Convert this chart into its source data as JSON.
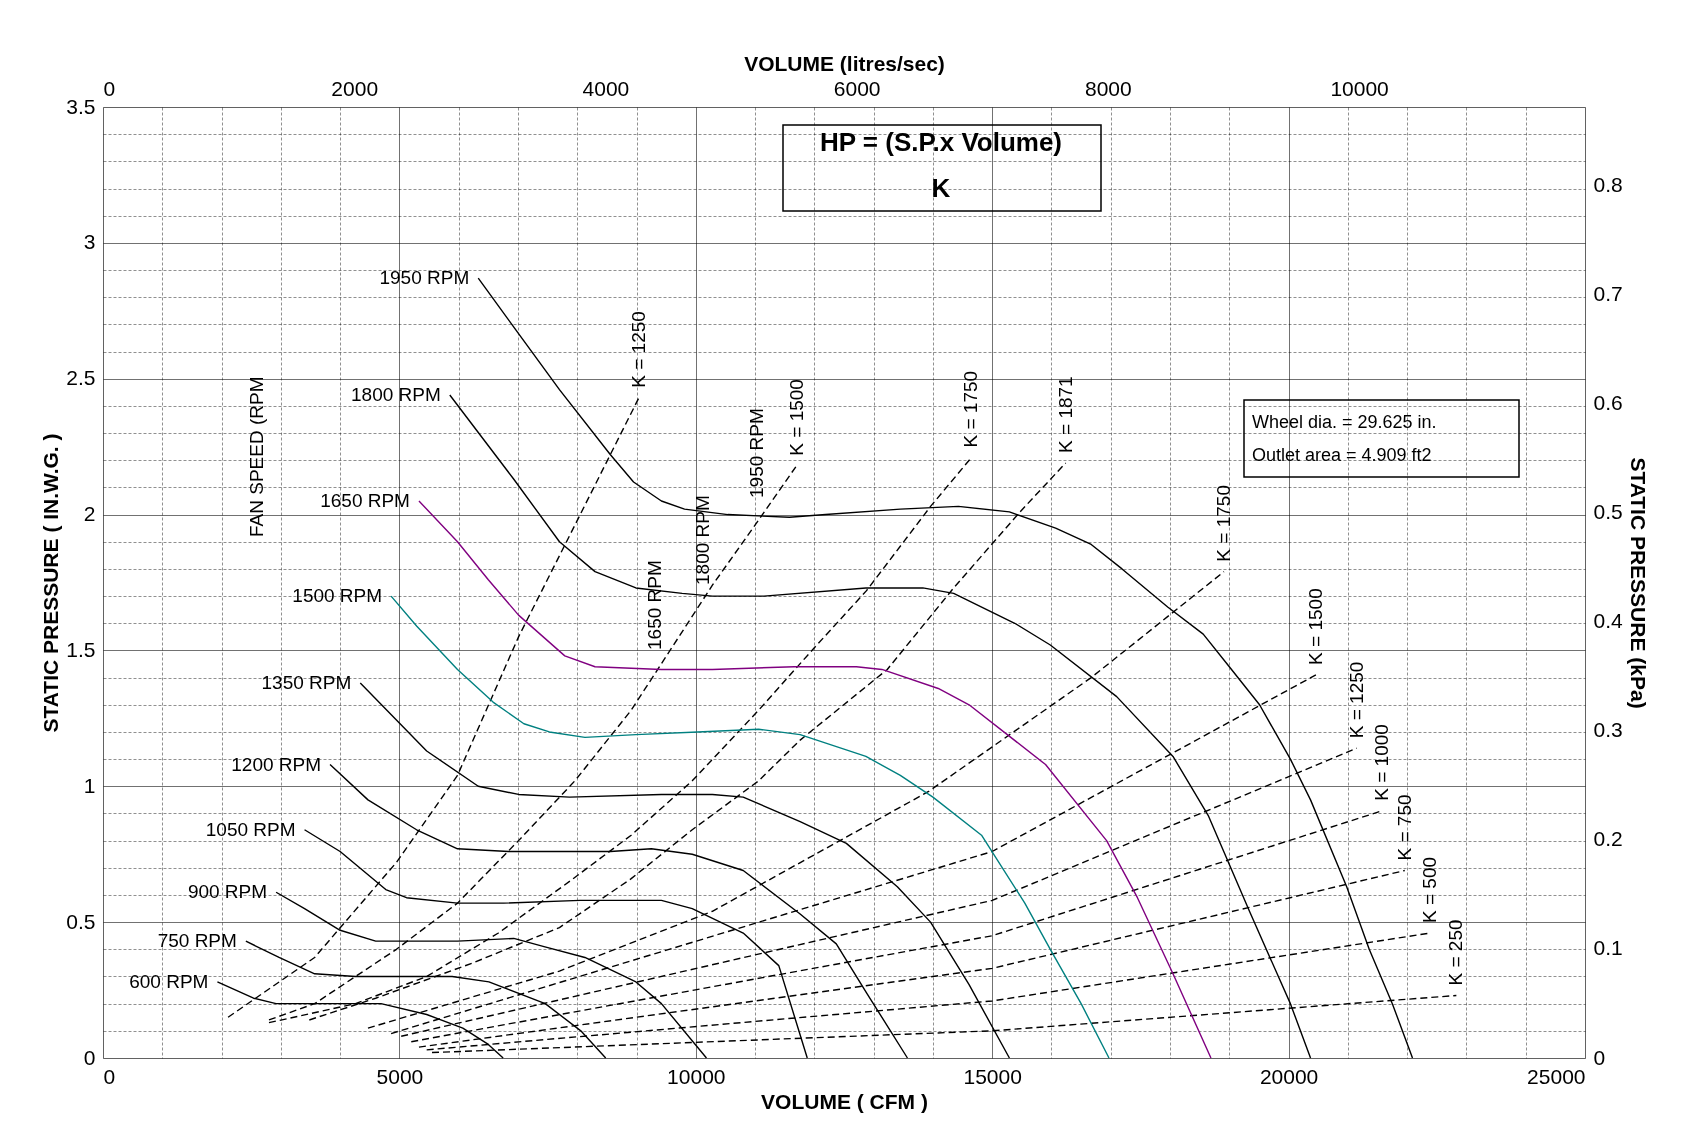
{
  "chart_data": {
    "type": "line",
    "xlabel": "VOLUME ( CFM )",
    "ylabel": "STATIC PRESSURE ( IN.W.G. )",
    "x2label": "VOLUME (litres/sec)",
    "y2label": "STATIC PRESSURE (kPa)",
    "xlim": [
      0,
      25000
    ],
    "ylim": [
      0,
      3.5
    ],
    "x2lim": [
      0,
      11798.6
    ],
    "y2lim": [
      0,
      0.8718
    ],
    "xticks": [
      0,
      {
        "value": 1000,
        "label": null
      },
      {
        "value": 2000,
        "label": null
      },
      {
        "value": 3000,
        "label": null
      },
      {
        "value": 4000,
        "label": null
      },
      5000,
      {
        "value": 6000,
        "label": null
      },
      {
        "value": 7000,
        "label": null
      },
      {
        "value": 8000,
        "label": null
      },
      {
        "value": 9000,
        "label": null
      },
      10000,
      {
        "value": 11000,
        "label": null
      },
      {
        "value": 12000,
        "label": null
      },
      {
        "value": 13000,
        "label": null
      },
      {
        "value": 14000,
        "label": null
      },
      15000,
      {
        "value": 16000,
        "label": null
      },
      {
        "value": 17000,
        "label": null
      },
      {
        "value": 18000,
        "label": null
      },
      {
        "value": 19000,
        "label": null
      },
      20000,
      {
        "value": 21000,
        "label": null
      },
      {
        "value": 22000,
        "label": null
      },
      {
        "value": 23000,
        "label": null
      },
      {
        "value": 24000,
        "label": null
      },
      25000
    ],
    "yticks": [
      0,
      {
        "value": 0.1,
        "label": null
      },
      {
        "value": 0.2,
        "label": null
      },
      {
        "value": 0.3,
        "label": null
      },
      {
        "value": 0.4,
        "label": null
      },
      0.5,
      {
        "value": 0.6,
        "label": null
      },
      {
        "value": 0.7,
        "label": null
      },
      {
        "value": 0.8,
        "label": null
      },
      {
        "value": 0.9,
        "label": null
      },
      1,
      {
        "value": 1.1,
        "label": null
      },
      {
        "value": 1.2,
        "label": null
      },
      {
        "value": 1.3,
        "label": null
      },
      {
        "value": 1.4,
        "label": null
      },
      1.5,
      {
        "value": 1.6,
        "label": null
      },
      {
        "value": 1.7,
        "label": null
      },
      {
        "value": 1.8,
        "label": null
      },
      {
        "value": 1.9,
        "label": null
      },
      2,
      {
        "value": 2.1,
        "label": null
      },
      {
        "value": 2.2,
        "label": null
      },
      {
        "value": 2.3,
        "label": null
      },
      {
        "value": 2.4,
        "label": null
      },
      2.5,
      {
        "value": 2.6,
        "label": null
      },
      {
        "value": 2.7,
        "label": null
      },
      {
        "value": 2.8,
        "label": null
      },
      {
        "value": 2.9,
        "label": null
      },
      3,
      {
        "value": 3.1,
        "label": null
      },
      {
        "value": 3.2,
        "label": null
      },
      {
        "value": 3.3,
        "label": null
      },
      {
        "value": 3.4,
        "label": null
      },
      3.5
    ],
    "x2ticks": [
      0,
      2000,
      4000,
      6000,
      8000,
      10000
    ],
    "y2ticks": [
      0,
      0.1,
      0.2,
      0.3,
      0.4,
      0.5,
      0.6,
      0.7,
      0.8
    ],
    "grid": true,
    "legend": false,
    "marker": "none",
    "series": [
      {
        "name": "600 RPM",
        "color": "#000000",
        "x": [
          1930,
          2540,
          2920,
          4690,
          5460,
          6070,
          6500,
          6750
        ],
        "values": [
          0.28,
          0.22,
          0.2,
          0.2,
          0.16,
          0.11,
          0.05,
          0
        ]
      },
      {
        "name": "750 RPM",
        "color": "#000000",
        "x": [
          2410,
          2970,
          3570,
          4260,
          5890,
          6510,
          7460,
          8060,
          8480
        ],
        "values": [
          0.43,
          0.37,
          0.31,
          0.3,
          0.3,
          0.28,
          0.2,
          0.1,
          0
        ]
      },
      {
        "name": "900 RPM",
        "color": "#000000",
        "x": [
          2920,
          3400,
          4000,
          4600,
          5980,
          6930,
          7440,
          8130,
          8990,
          9420,
          10180
        ],
        "values": [
          0.61,
          0.55,
          0.47,
          0.43,
          0.43,
          0.44,
          0.41,
          0.37,
          0.28,
          0.2,
          0
        ]
      },
      {
        "name": "1050 RPM",
        "color": "#000000",
        "x": [
          3400,
          4000,
          4770,
          5120,
          5980,
          6760,
          8050,
          8990,
          9420,
          9940,
          10800,
          11400,
          11880
        ],
        "values": [
          0.84,
          0.76,
          0.62,
          0.59,
          0.57,
          0.57,
          0.58,
          0.58,
          0.58,
          0.55,
          0.46,
          0.34,
          0
        ]
      },
      {
        "name": "1200 RPM",
        "color": "#000000",
        "x": [
          3830,
          4470,
          5290,
          5980,
          6840,
          8560,
          9250,
          9940,
          10800,
          11760,
          12370,
          12880,
          13570
        ],
        "values": [
          1.08,
          0.95,
          0.84,
          0.77,
          0.76,
          0.76,
          0.77,
          0.75,
          0.69,
          0.53,
          0.42,
          0.24,
          0
        ]
      },
      {
        "name": "1350 RPM",
        "color": "#000000",
        "x": [
          4340,
          5460,
          6330,
          7010,
          7870,
          9420,
          10280,
          10800,
          11760,
          12540,
          13400,
          13960,
          14610,
          15290
        ],
        "values": [
          1.38,
          1.13,
          1.0,
          0.97,
          0.96,
          0.97,
          0.97,
          0.96,
          0.87,
          0.79,
          0.63,
          0.5,
          0.27,
          0
        ]
      },
      {
        "name": "1500 RPM",
        "color": "#008080",
        "x": [
          4860,
          5290,
          5980,
          6580,
          7100,
          7530,
          8130,
          8990,
          10030,
          11060,
          11760,
          12870,
          13450,
          14000,
          14820,
          15550,
          15980,
          16500,
          16970
        ],
        "values": [
          1.7,
          1.59,
          1.43,
          1.31,
          1.23,
          1.2,
          1.18,
          1.19,
          1.2,
          1.21,
          1.19,
          1.11,
          1.04,
          0.96,
          0.82,
          0.57,
          0.4,
          0.2,
          0
        ]
      },
      {
        "name": "1650 RPM",
        "color": "#800080",
        "x": [
          5330,
          5980,
          6500,
          7010,
          7790,
          8300,
          9420,
          10280,
          11660,
          12710,
          13140,
          14090,
          14610,
          15900,
          16930,
          17450,
          18050,
          18690
        ],
        "values": [
          2.05,
          1.9,
          1.76,
          1.63,
          1.48,
          1.44,
          1.43,
          1.43,
          1.44,
          1.44,
          1.43,
          1.36,
          1.3,
          1.08,
          0.8,
          0.59,
          0.31,
          0
        ]
      },
      {
        "name": "1800 RPM",
        "color": "#000000",
        "x": [
          5850,
          6930,
          7700,
          8300,
          8990,
          9770,
          10280,
          11150,
          12870,
          13830,
          14350,
          15380,
          15980,
          17100,
          18050,
          18650,
          19340,
          20030,
          20370
        ],
        "values": [
          2.44,
          2.13,
          1.9,
          1.79,
          1.73,
          1.71,
          1.7,
          1.7,
          1.73,
          1.73,
          1.71,
          1.6,
          1.52,
          1.33,
          1.11,
          0.89,
          0.54,
          0.2,
          0
        ]
      },
      {
        "name": "1950 RPM",
        "color": "#000000",
        "x": [
          6330,
          6930,
          7700,
          8560,
          8950,
          9420,
          9810,
          10540,
          11580,
          12190,
          13450,
          14430,
          15290,
          16070,
          16670,
          17190,
          17960,
          18560,
          19000,
          19510,
          19770,
          20030,
          20370,
          20980,
          21360,
          21750,
          22090
        ],
        "values": [
          2.87,
          2.69,
          2.46,
          2.22,
          2.12,
          2.05,
          2.02,
          2.0,
          1.99,
          2.0,
          2.02,
          2.03,
          2.01,
          1.95,
          1.89,
          1.8,
          1.66,
          1.56,
          1.44,
          1.3,
          1.2,
          1.1,
          0.95,
          0.63,
          0.4,
          0.2,
          0
        ]
      },
      {
        "name": "K = 1250",
        "color": "#000000",
        "line_style": "dashed",
        "x": [
          2110,
          3570,
          4950,
          5980,
          7010,
          8050,
          9040
        ],
        "values": [
          0.15,
          0.37,
          0.72,
          1.04,
          1.55,
          2.0,
          2.43
        ]
      },
      {
        "name": "K = 1500",
        "color": "#000000",
        "line_style": "dashed",
        "x": [
          2800,
          3570,
          4950,
          5980,
          7010,
          7960,
          8910,
          10280,
          11060,
          11700
        ],
        "values": [
          0.14,
          0.2,
          0.4,
          0.57,
          0.8,
          1.02,
          1.28,
          1.74,
          1.98,
          2.18
        ]
      },
      {
        "name": "K = 1750",
        "color": "#000000",
        "line_style": "dashed",
        "x": [
          2800,
          4260,
          5460,
          6670,
          7870,
          8910,
          9940,
          11060,
          12000,
          12880,
          13960,
          14650
        ],
        "values": [
          0.13,
          0.2,
          0.3,
          0.46,
          0.65,
          0.82,
          1.02,
          1.28,
          1.51,
          1.72,
          2.03,
          2.21
        ]
      },
      {
        "name": "K = 1871",
        "color": "#000000",
        "line_style": "dashed",
        "x": [
          3480,
          4600,
          6240,
          7700,
          8910,
          9940,
          11060,
          11760,
          13230,
          14350,
          15470,
          16240
        ],
        "values": [
          0.14,
          0.22,
          0.35,
          0.48,
          0.66,
          0.84,
          1.02,
          1.17,
          1.43,
          1.73,
          2.01,
          2.19
        ]
      },
      {
        "name": "K = 1750",
        "color": "#000000",
        "line_style": "dashed",
        "x": [
          4470,
          7700,
          10280,
          13920,
          16670,
          18910
        ],
        "values": [
          0.11,
          0.32,
          0.54,
          0.98,
          1.4,
          1.79
        ]
      },
      {
        "name": "K = 1500",
        "color": "#000000",
        "line_style": "dashed",
        "x": [
          4860,
          15000,
          20460
        ],
        "values": [
          0.09,
          0.76,
          1.41
        ]
      },
      {
        "name": "K = 1250",
        "color": "#000000",
        "line_style": "dashed",
        "x": [
          5030,
          15000,
          21150
        ],
        "values": [
          0.08,
          0.58,
          1.14
        ]
      },
      {
        "name": "K = 1000",
        "color": "#000000",
        "line_style": "dashed",
        "x": [
          5200,
          15000,
          21580
        ],
        "values": [
          0.06,
          0.45,
          0.91
        ]
      },
      {
        "name": "K = 750",
        "color": "#000000",
        "line_style": "dashed",
        "x": [
          5330,
          15000,
          21960
        ],
        "values": [
          0.04,
          0.33,
          0.69
        ]
      },
      {
        "name": "K = 500",
        "color": "#000000",
        "line_style": "dashed",
        "x": [
          5460,
          15000,
          22390
        ],
        "values": [
          0.03,
          0.21,
          0.46
        ]
      },
      {
        "name": "K = 250",
        "color": "#000000",
        "line_style": "dashed",
        "x": [
          5550,
          15000,
          22830
        ],
        "values": [
          0.02,
          0.1,
          0.23
        ]
      }
    ],
    "annotations": [
      "HP = (S.P.x Volume)",
      "K",
      "Wheel dia. = 29.625 in.",
      "Outlet area = 4.909 ft2",
      "FAN SPEED (RPM",
      "1950 RPM",
      "1800 RPM",
      "1650 RPM"
    ]
  }
}
